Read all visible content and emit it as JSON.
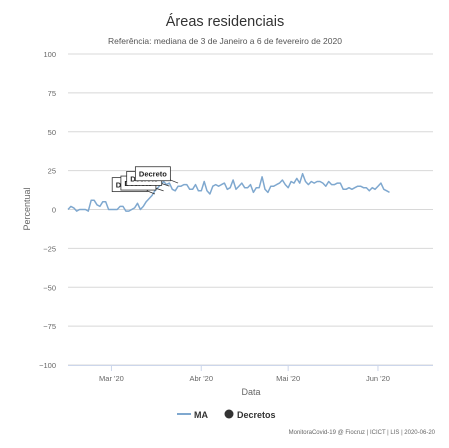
{
  "chart_data": {
    "type": "line",
    "title": "Áreas residenciais",
    "subtitle": "Referência: mediana de 3 de Janeiro a 6 de fevereiro de 2020",
    "xlabel": "Data",
    "ylabel": "Percentual",
    "ylim": [
      -100,
      100
    ],
    "yticks": [
      100,
      75,
      50,
      25,
      0,
      -25,
      -50,
      -75,
      -100
    ],
    "yticks_labels": [
      "100",
      "75",
      "50",
      "25",
      "0",
      "−25",
      "−50",
      "−75",
      "−100"
    ],
    "xlim": [
      "2020-02-15",
      "2020-06-20"
    ],
    "xticks": [
      {
        "date": "2020-03-01",
        "label": "Mar '20"
      },
      {
        "date": "2020-04-01",
        "label": "Abr '20"
      },
      {
        "date": "2020-05-01",
        "label": "Mai '20"
      },
      {
        "date": "2020-06-01",
        "label": "Jun '20"
      }
    ],
    "grid": true,
    "legend_position": "bottom-center",
    "series": [
      {
        "name": "MA",
        "color": "#7fa8cf",
        "start_date": "2020-02-15",
        "values": [
          0,
          2,
          1,
          -1,
          0,
          0,
          0,
          -1,
          6,
          6,
          3,
          2,
          5,
          5,
          0,
          0,
          0,
          0,
          2,
          2,
          -1,
          -1,
          0,
          1,
          4,
          0,
          2,
          5,
          7,
          9,
          12,
          14,
          16,
          18,
          16,
          17,
          13,
          12,
          15,
          15,
          16,
          16,
          13,
          13,
          16,
          12,
          12,
          18,
          12,
          10,
          15,
          16,
          15,
          16,
          17,
          13,
          14,
          19,
          13,
          15,
          17,
          14,
          14,
          16,
          11,
          14,
          14,
          21,
          13,
          11,
          15,
          15,
          16,
          17,
          19,
          16,
          14,
          18,
          17,
          20,
          17,
          23,
          18,
          16,
          18,
          17,
          18,
          18,
          17,
          15,
          18,
          16,
          16,
          17,
          17,
          13,
          13,
          14,
          13,
          14,
          15,
          15,
          14,
          14,
          12,
          14,
          13,
          15,
          17,
          13,
          12,
          11
        ]
      }
    ],
    "decretos": [
      {
        "date": "2020-03-16",
        "value": 10,
        "label": "Decreto",
        "label_value": 16
      },
      {
        "date": "2020-03-19",
        "value": 12,
        "label": "Decreto",
        "label_value": 17
      },
      {
        "date": "2020-03-21",
        "value": 15,
        "label": "Decreto",
        "label_value": 20
      },
      {
        "date": "2020-03-24",
        "value": 17,
        "label": "Decreto",
        "label_value": 23
      }
    ],
    "legend": [
      {
        "name": "MA",
        "kind": "line",
        "color": "#7fa8cf"
      },
      {
        "name": "Decretos",
        "kind": "dot",
        "color": "#333333"
      }
    ]
  },
  "credits": "MonitoraCovid-19 @ Fiocruz | ICICT | LIS | 2020-06-20"
}
